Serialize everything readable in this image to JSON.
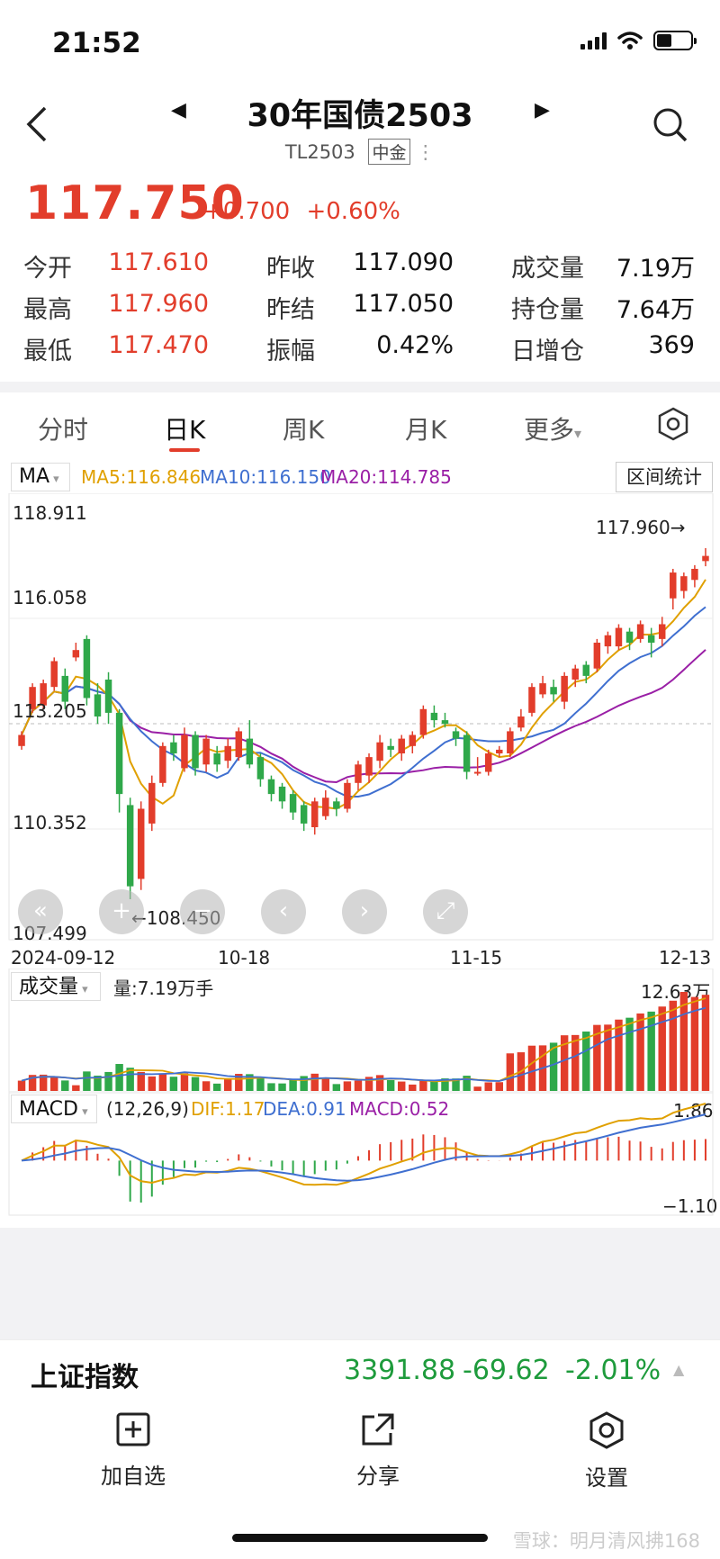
{
  "status": {
    "time": "21:52"
  },
  "header": {
    "title": "30年国债2503",
    "code": "TL2503",
    "exchange": "中金"
  },
  "quote": {
    "price": "117.750",
    "change": "+0.700",
    "change_pct": "+0.60%",
    "rows": [
      [
        {
          "label": "今开",
          "value": "117.610"
        },
        {
          "label": "昨收",
          "value": "117.090"
        },
        {
          "label": "成交量",
          "value": "7.19万"
        }
      ],
      [
        {
          "label": "最高",
          "value": "117.960"
        },
        {
          "label": "昨结",
          "value": "117.050"
        },
        {
          "label": "持仓量",
          "value": "7.64万"
        }
      ],
      [
        {
          "label": "最低",
          "value": "117.470"
        },
        {
          "label": "振幅",
          "value": "0.42%"
        },
        {
          "label": "日增仓",
          "value": "369"
        }
      ]
    ]
  },
  "tabs": [
    "分时",
    "日K",
    "周K",
    "月K",
    "更多"
  ],
  "active_tab": "日K",
  "ma_bar": {
    "selector": "MA",
    "ma5": "MA5:116.846",
    "ma10": "MA10:116.150",
    "ma20": "MA20:114.785",
    "range_stats": "区间统计",
    "colors": {
      "ma5": "#e0a000",
      "ma10": "#3f6fd0",
      "ma20": "#9a1fa6",
      "up": "#e23d2b",
      "down": "#2fa84a"
    }
  },
  "kchart": {
    "y_labels": [
      "118.911",
      "116.058",
      "113.205",
      "110.352",
      "107.499"
    ],
    "high_marker": "117.960→",
    "low_marker": "←108.450",
    "dates": [
      "2024-09-12",
      "10-18",
      "11-15",
      "12-13"
    ]
  },
  "volume": {
    "selector": "成交量",
    "summary": "量:7.19万手",
    "max_label": "12.63万"
  },
  "macd": {
    "selector": "MACD",
    "params": "(12,26,9)",
    "dif": "DIF:1.17",
    "dea": "DEA:0.91",
    "macd": "MACD:0.52",
    "max_label": "1.86",
    "min_label": "−1.10"
  },
  "chart_data": {
    "type": "candlestick",
    "y_range": [
      107.499,
      118.911
    ],
    "candles": [
      [
        112.6,
        112.9,
        112.5,
        113.0
      ],
      [
        113.6,
        114.2,
        113.5,
        114.3
      ],
      [
        113.7,
        114.3,
        113.6,
        114.4
      ],
      [
        114.2,
        114.9,
        114.1,
        115.0
      ],
      [
        114.5,
        113.8,
        113.6,
        114.7
      ],
      [
        115.0,
        115.2,
        114.9,
        115.4
      ],
      [
        115.5,
        113.9,
        113.7,
        115.6
      ],
      [
        114.0,
        113.4,
        113.2,
        114.3
      ],
      [
        114.4,
        113.5,
        113.2,
        114.6
      ],
      [
        113.5,
        111.3,
        110.8,
        113.6
      ],
      [
        111.0,
        108.8,
        108.45,
        111.2
      ],
      [
        109.0,
        110.9,
        108.7,
        111.1
      ],
      [
        110.5,
        111.6,
        110.3,
        111.8
      ],
      [
        111.6,
        112.6,
        111.5,
        112.7
      ],
      [
        112.7,
        112.4,
        112.2,
        112.9
      ],
      [
        112.0,
        112.9,
        111.9,
        113.1
      ],
      [
        112.9,
        112.0,
        111.8,
        113.0
      ],
      [
        112.1,
        112.8,
        111.9,
        112.9
      ],
      [
        112.4,
        112.1,
        111.9,
        112.6
      ],
      [
        112.2,
        112.6,
        112.0,
        112.8
      ],
      [
        112.3,
        113.0,
        112.2,
        113.1
      ],
      [
        112.8,
        112.1,
        112.0,
        113.3
      ],
      [
        112.3,
        111.7,
        111.5,
        112.4
      ],
      [
        111.7,
        111.3,
        111.1,
        111.8
      ],
      [
        111.5,
        111.1,
        110.9,
        111.6
      ],
      [
        111.3,
        110.8,
        110.6,
        111.4
      ],
      [
        111.0,
        110.5,
        110.3,
        111.1
      ],
      [
        110.4,
        111.1,
        110.2,
        111.2
      ],
      [
        110.7,
        111.2,
        110.6,
        111.4
      ],
      [
        111.1,
        110.9,
        110.7,
        111.2
      ],
      [
        110.9,
        111.6,
        110.8,
        111.7
      ],
      [
        111.6,
        112.1,
        111.4,
        112.2
      ],
      [
        111.8,
        112.3,
        111.6,
        112.4
      ],
      [
        112.2,
        112.7,
        112.0,
        112.9
      ],
      [
        112.6,
        112.5,
        112.3,
        112.8
      ],
      [
        112.4,
        112.8,
        112.2,
        112.9
      ],
      [
        112.6,
        112.9,
        112.4,
        113.0
      ],
      [
        112.9,
        113.6,
        112.8,
        113.7
      ],
      [
        113.5,
        113.3,
        113.1,
        113.7
      ],
      [
        113.3,
        113.2,
        113.1,
        113.5
      ],
      [
        113.0,
        112.8,
        112.6,
        113.1
      ],
      [
        112.9,
        111.9,
        111.7,
        113.0
      ],
      [
        111.9,
        111.9,
        111.8,
        112.3
      ],
      [
        111.9,
        112.4,
        111.8,
        112.5
      ],
      [
        112.4,
        112.5,
        112.3,
        112.6
      ],
      [
        112.4,
        113.0,
        112.3,
        113.1
      ],
      [
        113.1,
        113.4,
        113.0,
        113.6
      ],
      [
        113.5,
        114.2,
        113.4,
        114.3
      ],
      [
        114.0,
        114.3,
        113.9,
        114.5
      ],
      [
        114.2,
        114.0,
        113.8,
        114.4
      ],
      [
        113.8,
        114.5,
        113.6,
        114.6
      ],
      [
        114.4,
        114.7,
        114.2,
        114.8
      ],
      [
        114.8,
        114.5,
        114.3,
        114.9
      ],
      [
        114.7,
        115.4,
        114.6,
        115.5
      ],
      [
        115.3,
        115.6,
        115.1,
        115.7
      ],
      [
        115.3,
        115.8,
        115.2,
        115.9
      ],
      [
        115.7,
        115.4,
        115.2,
        115.8
      ],
      [
        115.5,
        115.9,
        115.4,
        116.0
      ],
      [
        115.6,
        115.4,
        115.0,
        115.8
      ],
      [
        115.5,
        115.9,
        115.3,
        116.1
      ],
      [
        116.6,
        117.3,
        116.3,
        117.4
      ],
      [
        116.8,
        117.2,
        116.6,
        117.3
      ],
      [
        117.1,
        117.4,
        116.9,
        117.5
      ],
      [
        117.61,
        117.75,
        117.47,
        117.96
      ]
    ],
    "volume_max": "12.63万"
  }
}
